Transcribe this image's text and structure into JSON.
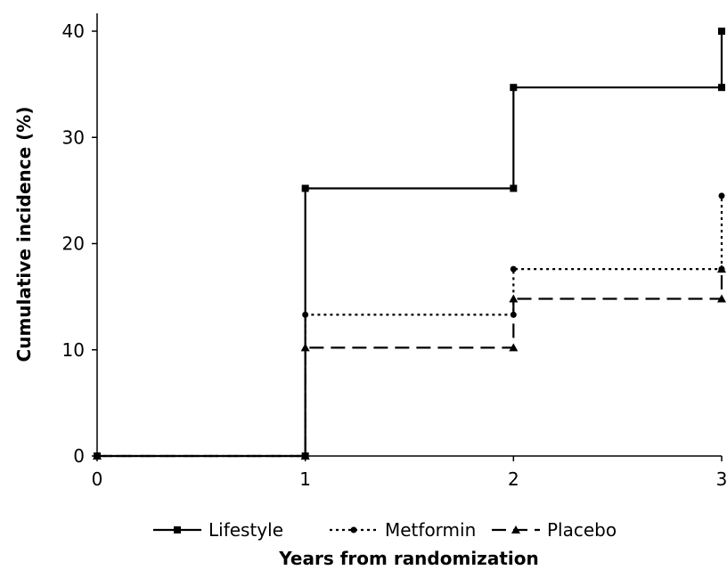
{
  "chart_data": {
    "type": "line",
    "step": true,
    "title": "",
    "xlabel": "Years from randomization",
    "ylabel": "Cumulative incidence (%)",
    "xlim": [
      0,
      3
    ],
    "ylim": [
      0,
      40
    ],
    "x_ticks": [
      "0",
      "1",
      "2",
      "3"
    ],
    "y_ticks": [
      "0",
      "10",
      "20",
      "30",
      "40"
    ],
    "grid": false,
    "legend_position": "bottom",
    "series": [
      {
        "name": "Lifestyle",
        "marker": "square",
        "line_style": "solid",
        "points": [
          [
            0,
            0
          ],
          [
            1,
            0
          ],
          [
            1,
            25.2
          ],
          [
            2,
            25.2
          ],
          [
            2,
            34.7
          ],
          [
            3,
            34.7
          ],
          [
            3,
            40.0
          ]
        ]
      },
      {
        "name": "Metformin",
        "marker": "circle",
        "line_style": "dotted",
        "points": [
          [
            0,
            0
          ],
          [
            1,
            0
          ],
          [
            1,
            13.3
          ],
          [
            2,
            13.3
          ],
          [
            2,
            17.6
          ],
          [
            3,
            17.6
          ],
          [
            3,
            24.5
          ]
        ]
      },
      {
        "name": "Placebo",
        "marker": "triangle",
        "line_style": "dashed",
        "points": [
          [
            0,
            0
          ],
          [
            1,
            0
          ],
          [
            1,
            10.2
          ],
          [
            2,
            10.2
          ],
          [
            2,
            14.8
          ],
          [
            3,
            14.8
          ],
          [
            3,
            17.6
          ]
        ]
      }
    ]
  }
}
